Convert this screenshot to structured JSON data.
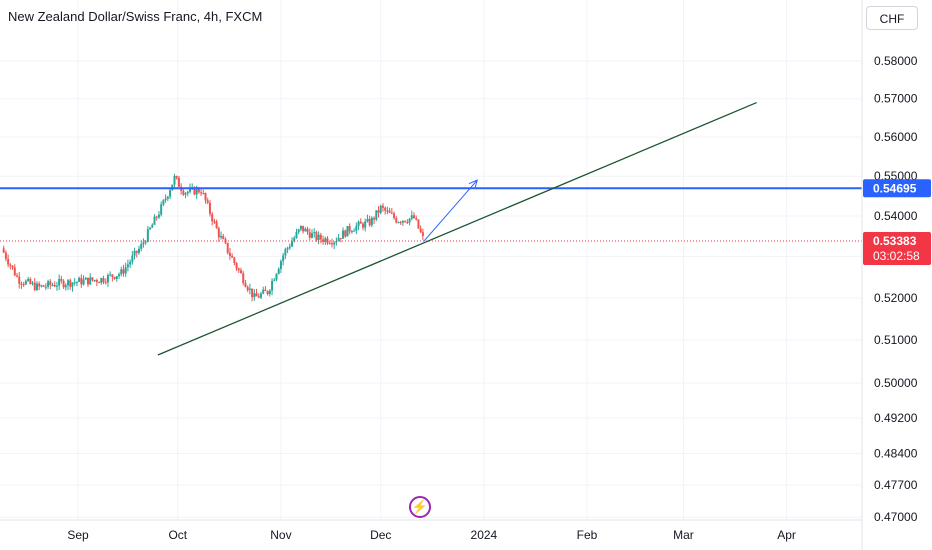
{
  "title": "New Zealand Dollar/Swiss Franc, 4h, FXCM",
  "currency_button": "CHF",
  "flash_icon_glyph": "⚡",
  "colors": {
    "up": "#26a69a",
    "down": "#ef5350",
    "resistance": "#2962ff",
    "trendline": "#1e5631",
    "arrow": "#2962ff",
    "current_price": "#f23645",
    "grid": "#f0f3fa"
  },
  "chart_data": {
    "type": "candlestick",
    "title": "New Zealand Dollar/Swiss Franc, 4h, FXCM",
    "x_tick_labels": [
      "Sep",
      "Oct",
      "Nov",
      "Dec",
      "2024",
      "Feb",
      "Mar",
      "Apr"
    ],
    "x_tick_dates": [
      "2023-09-01",
      "2023-10-01",
      "2023-11-01",
      "2023-12-01",
      "2024-01-01",
      "2024-02-01",
      "2024-03-01",
      "2024-04-01"
    ],
    "y_tick_labels": [
      "0.58000",
      "0.57000",
      "0.56000",
      "0.55000",
      "0.54000",
      "0.53000",
      "0.52000",
      "0.51000",
      "0.50000",
      "0.49200",
      "0.48400",
      "0.47700",
      "0.47000"
    ],
    "y_ticks": [
      0.58,
      0.57,
      0.56,
      0.55,
      0.54,
      0.53,
      0.52,
      0.51,
      0.5,
      0.492,
      0.484,
      0.477,
      0.47
    ],
    "y_scale": "log",
    "series_close_approx": [
      {
        "date": "2023-08-09",
        "close": 0.532
      },
      {
        "date": "2023-08-14",
        "close": 0.5245
      },
      {
        "date": "2023-08-20",
        "close": 0.5225
      },
      {
        "date": "2023-08-26",
        "close": 0.5235
      },
      {
        "date": "2023-09-02",
        "close": 0.524
      },
      {
        "date": "2023-09-08",
        "close": 0.5245
      },
      {
        "date": "2023-09-14",
        "close": 0.526
      },
      {
        "date": "2023-09-20",
        "close": 0.5325
      },
      {
        "date": "2023-09-26",
        "close": 0.542
      },
      {
        "date": "2023-09-30",
        "close": 0.5495
      },
      {
        "date": "2023-10-03",
        "close": 0.546
      },
      {
        "date": "2023-10-08",
        "close": 0.5465
      },
      {
        "date": "2023-10-13",
        "close": 0.536
      },
      {
        "date": "2023-10-19",
        "close": 0.527
      },
      {
        "date": "2023-10-24",
        "close": 0.52
      },
      {
        "date": "2023-10-28",
        "close": 0.5215
      },
      {
        "date": "2023-11-02",
        "close": 0.531
      },
      {
        "date": "2023-11-07",
        "close": 0.537
      },
      {
        "date": "2023-11-12",
        "close": 0.5345
      },
      {
        "date": "2023-11-17",
        "close": 0.534
      },
      {
        "date": "2023-11-22",
        "close": 0.537
      },
      {
        "date": "2023-11-28",
        "close": 0.5385
      },
      {
        "date": "2023-12-01",
        "close": 0.542
      },
      {
        "date": "2023-12-06",
        "close": 0.539
      },
      {
        "date": "2023-12-11",
        "close": 0.5395
      },
      {
        "date": "2023-12-14",
        "close": 0.5338
      }
    ],
    "horizontal_line": {
      "price": 0.54695,
      "label": "0.54695"
    },
    "current_price": {
      "price": 0.53383,
      "label": "0.53383",
      "countdown": "03:02:58"
    },
    "trendline": {
      "from": {
        "date": "2023-09-25",
        "price": 0.5065
      },
      "to": {
        "date": "2024-03-23",
        "price": 0.569
      }
    },
    "arrow": {
      "from": {
        "date": "2023-12-14",
        "price": 0.5338
      },
      "to": {
        "date": "2023-12-30",
        "price": 0.549
      }
    }
  }
}
